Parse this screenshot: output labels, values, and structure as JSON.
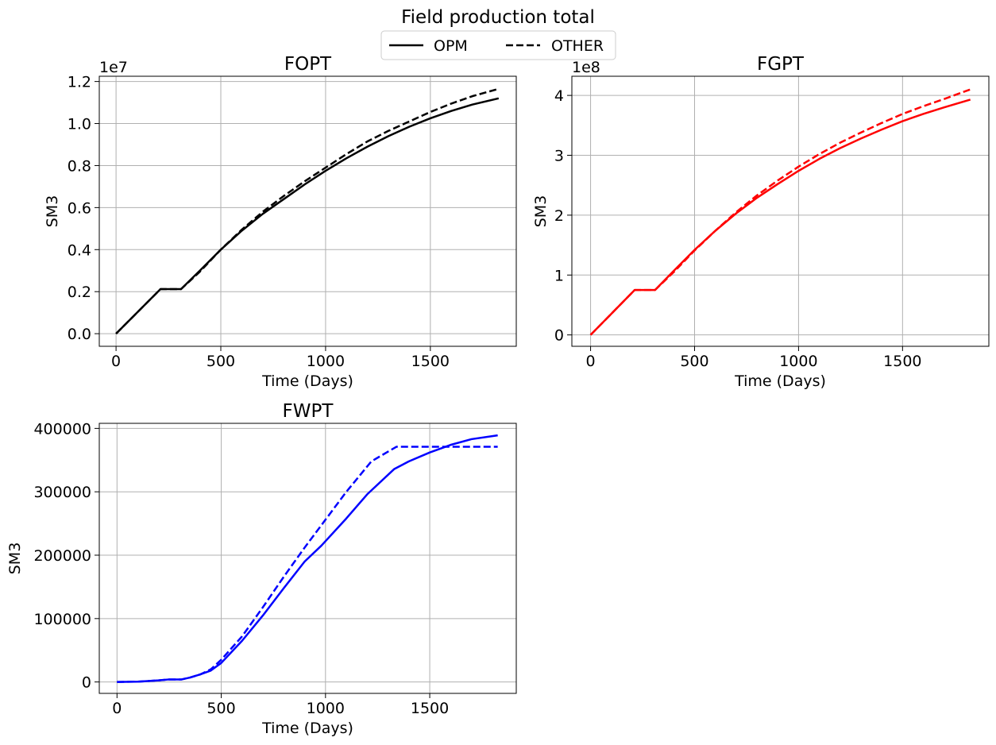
{
  "figure": {
    "title": "Field production total",
    "legend": {
      "placement": "top-center",
      "entries": [
        {
          "label": "OPM",
          "style": "solid"
        },
        {
          "label": "OTHER",
          "style": "dashed"
        }
      ]
    }
  },
  "chart_data": [
    {
      "type": "line",
      "title": "FOPT",
      "xlabel": "Time (Days)",
      "ylabel": "SM3",
      "offset_text": "1e7",
      "color": "#000000",
      "grid": true,
      "xlim": [
        -80,
        1910
      ],
      "ylim": [
        -0.06,
        1.225
      ],
      "xticks": [
        0,
        500,
        1000,
        1500
      ],
      "xtick_labels": [
        "0",
        "500",
        "1000",
        "1500"
      ],
      "yticks": [
        0.0,
        0.2,
        0.4,
        0.6,
        0.8,
        1.0,
        1.2
      ],
      "ytick_labels": [
        "0.0",
        "0.2",
        "0.4",
        "0.6",
        "0.8",
        "1.0",
        "1.2"
      ],
      "series": [
        {
          "name": "OPM",
          "style": "solid",
          "x": [
            0,
            212,
            310,
            400,
            500,
            600,
            700,
            800,
            900,
            1000,
            1100,
            1200,
            1300,
            1400,
            1500,
            1600,
            1700,
            1826
          ],
          "y": [
            0,
            0.212,
            0.212,
            0.3,
            0.4,
            0.49,
            0.57,
            0.64,
            0.71,
            0.775,
            0.835,
            0.89,
            0.94,
            0.985,
            1.025,
            1.06,
            1.09,
            1.12
          ]
        },
        {
          "name": "OTHER",
          "style": "dashed",
          "x": [
            0,
            212,
            310,
            400,
            500,
            600,
            700,
            800,
            900,
            1000,
            1100,
            1200,
            1300,
            1400,
            1500,
            1600,
            1700,
            1826
          ],
          "y": [
            0,
            0.212,
            0.212,
            0.295,
            0.4,
            0.495,
            0.58,
            0.655,
            0.725,
            0.79,
            0.855,
            0.915,
            0.965,
            1.01,
            1.055,
            1.095,
            1.13,
            1.165
          ]
        }
      ]
    },
    {
      "type": "line",
      "title": "FGPT",
      "xlabel": "Time (Days)",
      "ylabel": "SM3",
      "offset_text": "1e8",
      "color": "#ff0000",
      "grid": true,
      "xlim": [
        -90,
        1915
      ],
      "ylim": [
        -0.19,
        4.32
      ],
      "xticks": [
        0,
        500,
        1000,
        1500
      ],
      "xtick_labels": [
        "0",
        "500",
        "1000",
        "1500"
      ],
      "yticks": [
        0,
        1,
        2,
        3,
        4
      ],
      "ytick_labels": [
        "0",
        "1",
        "2",
        "3",
        "4"
      ],
      "series": [
        {
          "name": "OPM",
          "style": "solid",
          "x": [
            0,
            212,
            310,
            400,
            500,
            600,
            700,
            800,
            900,
            1000,
            1100,
            1200,
            1300,
            1400,
            1500,
            1600,
            1700,
            1826
          ],
          "y": [
            0,
            0.75,
            0.75,
            1.07,
            1.42,
            1.74,
            2.03,
            2.29,
            2.52,
            2.74,
            2.94,
            3.12,
            3.28,
            3.43,
            3.57,
            3.69,
            3.8,
            3.93
          ]
        },
        {
          "name": "OTHER",
          "style": "dashed",
          "x": [
            0,
            212,
            310,
            400,
            500,
            600,
            700,
            800,
            900,
            1000,
            1100,
            1200,
            1300,
            1400,
            1500,
            1600,
            1700,
            1826
          ],
          "y": [
            0,
            0.75,
            0.75,
            1.05,
            1.41,
            1.74,
            2.05,
            2.33,
            2.58,
            2.81,
            3.02,
            3.21,
            3.38,
            3.54,
            3.69,
            3.82,
            3.94,
            4.1
          ]
        }
      ]
    },
    {
      "type": "line",
      "title": "FWPT",
      "xlabel": "Time (Days)",
      "ylabel": "SM3",
      "offset_text": "",
      "color": "#0000ff",
      "grid": true,
      "xlim": [
        -85,
        1915
      ],
      "ylim": [
        -18000,
        408000
      ],
      "xticks": [
        0,
        500,
        1000,
        1500
      ],
      "xtick_labels": [
        "0",
        "500",
        "1000",
        "1500"
      ],
      "yticks": [
        0,
        100000,
        200000,
        300000,
        400000
      ],
      "ytick_labels": [
        "0",
        "100000",
        "200000",
        "300000",
        "400000"
      ],
      "series": [
        {
          "name": "OPM",
          "style": "solid",
          "x": [
            0,
            100,
            200,
            250,
            310,
            350,
            400,
            450,
            500,
            600,
            700,
            800,
            900,
            980,
            1100,
            1200,
            1330,
            1400,
            1500,
            1600,
            1700,
            1826
          ],
          "y": [
            0,
            500,
            2500,
            4000,
            4000,
            7000,
            12000,
            18000,
            30000,
            65000,
            105000,
            148000,
            190000,
            215000,
            258000,
            296000,
            336000,
            348000,
            362000,
            374000,
            383000,
            389000
          ]
        },
        {
          "name": "OTHER",
          "style": "dashed",
          "x": [
            0,
            100,
            200,
            250,
            310,
            350,
            400,
            450,
            500,
            600,
            700,
            800,
            900,
            1000,
            1100,
            1220,
            1340,
            1500,
            1600,
            1700,
            1826
          ],
          "y": [
            0,
            500,
            2500,
            4000,
            4000,
            7000,
            12000,
            20000,
            35000,
            72000,
            118000,
            166000,
            212000,
            256000,
            300000,
            348000,
            371000,
            371000,
            371000,
            371000,
            371000
          ]
        }
      ]
    }
  ]
}
